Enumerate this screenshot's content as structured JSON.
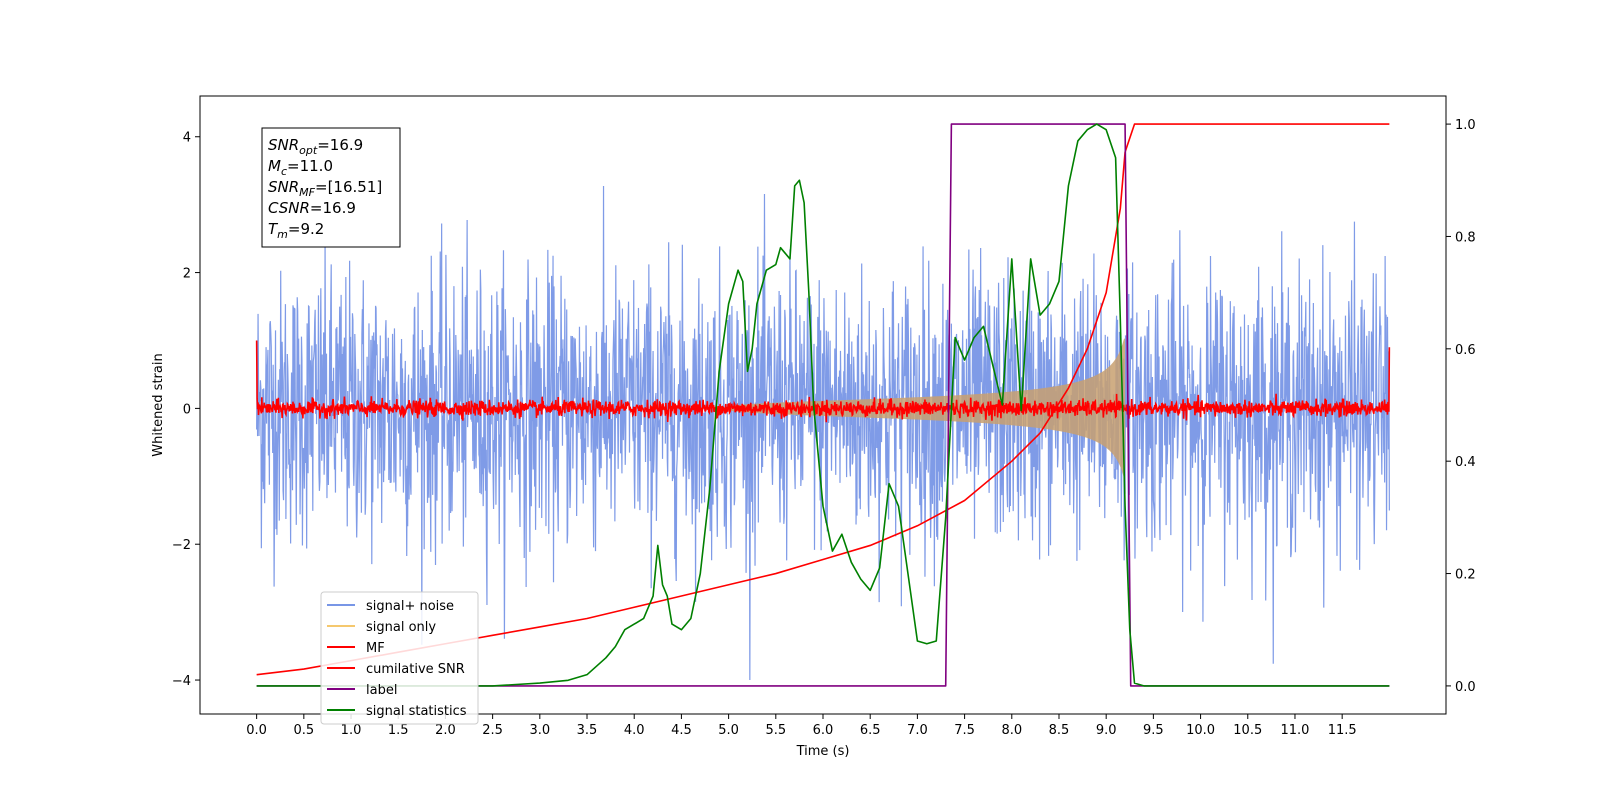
{
  "chart_data": {
    "type": "line",
    "xlabel": "Time (s)",
    "ylabel": "Whitened strain",
    "xlim": [
      -0.6,
      12.6
    ],
    "ylim": [
      -4.5,
      4.6
    ],
    "y2lim": [
      -0.05,
      1.05
    ],
    "x_ticks": [
      "0.0",
      "0.5",
      "1.0",
      "1.5",
      "2.0",
      "2.5",
      "3.0",
      "3.5",
      "4.0",
      "4.5",
      "5.0",
      "5.5",
      "6.0",
      "6.5",
      "7.0",
      "7.5",
      "8.0",
      "8.5",
      "9.0",
      "9.5",
      "10.0",
      "10.5",
      "11.0",
      "11.5"
    ],
    "x_tick_values": [
      0,
      0.5,
      1,
      1.5,
      2,
      2.5,
      3,
      3.5,
      4,
      4.5,
      5,
      5.5,
      6,
      6.5,
      7,
      7.5,
      8,
      8.5,
      9,
      9.5,
      10,
      10.5,
      11,
      11.5
    ],
    "y_ticks": [
      "4",
      "2",
      "0",
      "−2",
      "−4"
    ],
    "y_tick_values": [
      4,
      2,
      0,
      -2,
      -4
    ],
    "y2_ticks": [
      "1.0",
      "0.8",
      "0.6",
      "0.4",
      "0.2",
      "0.0"
    ],
    "y2_tick_values": [
      1.0,
      0.8,
      0.6,
      0.4,
      0.2,
      0.0
    ],
    "annotation": {
      "lines": [
        {
          "name": "SNR",
          "sub": "opt",
          "value": "=16.9"
        },
        {
          "name": "M",
          "sub": "c",
          "value": "=11.0"
        },
        {
          "name": "SNR",
          "sub": "MF",
          "value": "=[16.51]"
        },
        {
          "name": "CSNR",
          "sub": "",
          "value": "=16.9"
        },
        {
          "name": "T",
          "sub": "m",
          "value": "=9.2"
        }
      ]
    },
    "legend": {
      "position": "lower-left",
      "entries": [
        {
          "label": "signal+ noise",
          "color": "#7896e6"
        },
        {
          "label": "signal only",
          "color": "#f5c86e"
        },
        {
          "label": "MF",
          "color": "#ff0000"
        },
        {
          "label": "cumilative SNR",
          "color": "#ff0000"
        },
        {
          "label": "label",
          "color": "#800080"
        },
        {
          "label": "signal statistics",
          "color": "#008000"
        }
      ]
    },
    "series": [
      {
        "name": "signal+ noise",
        "axis": "left",
        "color": "#7896e6",
        "noise_std": 1.0,
        "range": [
          -4.0,
          4.0
        ],
        "t_start": 0.0,
        "t_end": 12.0
      },
      {
        "name": "signal only",
        "axis": "left",
        "color": "#c8a070",
        "t_start": 5.0,
        "t_end": 9.2,
        "amp_end": 1.1
      },
      {
        "name": "MF",
        "axis": "left",
        "color": "#ff0000",
        "noise_std": 0.06,
        "t_start": 0.0,
        "t_end": 12.0
      },
      {
        "name": "cumilative SNR",
        "axis": "right",
        "color": "#ff0000",
        "x": [
          0.0,
          0.5,
          1.0,
          1.5,
          2.0,
          2.5,
          3.0,
          3.5,
          4.0,
          4.5,
          5.0,
          5.5,
          6.0,
          6.5,
          7.0,
          7.5,
          8.0,
          8.3,
          8.6,
          8.8,
          9.0,
          9.1,
          9.15,
          9.2,
          9.3,
          12.0
        ],
        "y": [
          0.02,
          0.03,
          0.045,
          0.06,
          0.075,
          0.09,
          0.105,
          0.12,
          0.14,
          0.16,
          0.18,
          0.2,
          0.225,
          0.25,
          0.285,
          0.33,
          0.4,
          0.45,
          0.53,
          0.6,
          0.7,
          0.8,
          0.85,
          0.95,
          1.0,
          1.0
        ]
      },
      {
        "name": "label",
        "axis": "right",
        "color": "#800080",
        "x": [
          0.0,
          7.3,
          7.36,
          9.2,
          9.26,
          12.0
        ],
        "y": [
          0.0,
          0.0,
          1.0,
          1.0,
          0.0,
          0.0
        ]
      },
      {
        "name": "signal statistics",
        "axis": "right",
        "color": "#008000",
        "x": [
          0.0,
          0.5,
          1.0,
          1.5,
          2.0,
          2.5,
          3.0,
          3.3,
          3.5,
          3.7,
          3.8,
          3.9,
          4.0,
          4.1,
          4.2,
          4.25,
          4.3,
          4.35,
          4.4,
          4.5,
          4.6,
          4.7,
          4.8,
          4.9,
          5.0,
          5.1,
          5.15,
          5.2,
          5.25,
          5.3,
          5.4,
          5.5,
          5.55,
          5.6,
          5.65,
          5.7,
          5.75,
          5.8,
          5.85,
          5.9,
          6.0,
          6.1,
          6.2,
          6.3,
          6.4,
          6.5,
          6.6,
          6.7,
          6.8,
          6.9,
          7.0,
          7.1,
          7.2,
          7.3,
          7.4,
          7.5,
          7.6,
          7.7,
          7.8,
          7.9,
          8.0,
          8.1,
          8.2,
          8.3,
          8.4,
          8.5,
          8.6,
          8.7,
          8.8,
          8.9,
          9.0,
          9.1,
          9.15,
          9.2,
          9.25,
          9.3,
          9.4,
          12.0
        ],
        "y": [
          0.0,
          0.0,
          0.0,
          0.0,
          0.0,
          0.0,
          0.005,
          0.01,
          0.02,
          0.05,
          0.07,
          0.1,
          0.11,
          0.12,
          0.16,
          0.25,
          0.18,
          0.16,
          0.11,
          0.1,
          0.12,
          0.2,
          0.35,
          0.56,
          0.68,
          0.74,
          0.72,
          0.56,
          0.6,
          0.68,
          0.74,
          0.75,
          0.78,
          0.77,
          0.76,
          0.89,
          0.9,
          0.86,
          0.7,
          0.5,
          0.32,
          0.24,
          0.27,
          0.22,
          0.19,
          0.17,
          0.21,
          0.36,
          0.32,
          0.2,
          0.08,
          0.075,
          0.08,
          0.3,
          0.62,
          0.58,
          0.62,
          0.64,
          0.57,
          0.5,
          0.76,
          0.49,
          0.76,
          0.66,
          0.68,
          0.72,
          0.89,
          0.97,
          0.99,
          1.0,
          0.99,
          0.94,
          0.65,
          0.32,
          0.1,
          0.005,
          0.0,
          0.0
        ]
      }
    ]
  }
}
